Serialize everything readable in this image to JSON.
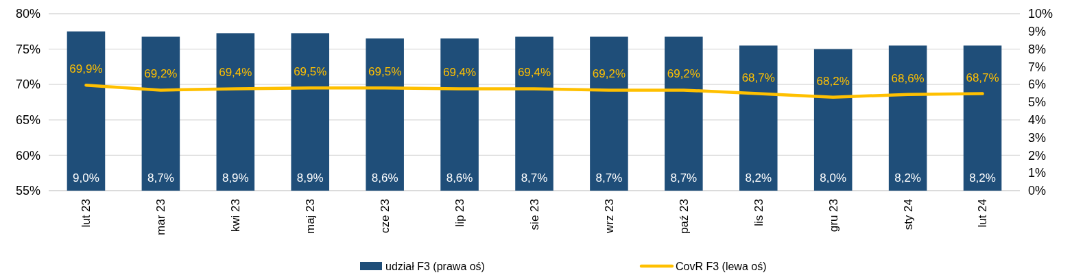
{
  "chart_data": {
    "type": "bar",
    "categories": [
      "lut 23",
      "mar 23",
      "kwi 23",
      "maj 23",
      "cze 23",
      "lip 23",
      "sie 23",
      "wrz 23",
      "paź 23",
      "lis 23",
      "gru 23",
      "sty 24",
      "lut 24"
    ],
    "series": [
      {
        "name": "udział F3 (prawa oś)",
        "axis": "y2",
        "color": "#1f4e79",
        "values": [
          9.0,
          8.7,
          8.9,
          8.9,
          8.6,
          8.6,
          8.7,
          8.7,
          8.7,
          8.2,
          8.0,
          8.2,
          8.2
        ],
        "value_labels": [
          "9,0%",
          "8,7%",
          "8,9%",
          "8,9%",
          "8,6%",
          "8,6%",
          "8,7%",
          "8,7%",
          "8,7%",
          "8,2%",
          "8,0%",
          "8,2%",
          "8,2%"
        ]
      },
      {
        "name": "CovR F3 (lewa oś)",
        "type": "line",
        "axis": "y",
        "color": "#ffc000",
        "values": [
          69.9,
          69.2,
          69.4,
          69.5,
          69.5,
          69.4,
          69.4,
          69.2,
          69.2,
          68.7,
          68.2,
          68.6,
          68.7
        ],
        "value_labels": [
          "69,9%",
          "69,2%",
          "69,4%",
          "69,5%",
          "69,5%",
          "69,4%",
          "69,4%",
          "69,2%",
          "69,2%",
          "68,7%",
          "68,2%",
          "68,6%",
          "68,7%"
        ]
      }
    ],
    "ylim": [
      55,
      80
    ],
    "yticks": [
      {
        "value": 55,
        "label": "55%"
      },
      {
        "value": 60,
        "label": "60%"
      },
      {
        "value": 65,
        "label": "65%"
      },
      {
        "value": 70,
        "label": "70%"
      },
      {
        "value": 75,
        "label": "75%"
      },
      {
        "value": 80,
        "label": "80%"
      }
    ],
    "y2lim": [
      0,
      10
    ],
    "y2ticks": [
      {
        "value": 0,
        "label": "0%"
      },
      {
        "value": 1,
        "label": "1%"
      },
      {
        "value": 2,
        "label": "2%"
      },
      {
        "value": 3,
        "label": "3%"
      },
      {
        "value": 4,
        "label": "4%"
      },
      {
        "value": 5,
        "label": "5%"
      },
      {
        "value": 6,
        "label": "6%"
      },
      {
        "value": 7,
        "label": "7%"
      },
      {
        "value": 8,
        "label": "8%"
      },
      {
        "value": 9,
        "label": "9%"
      },
      {
        "value": 10,
        "label": "10%"
      }
    ],
    "grid": "y",
    "legend": "bottom"
  }
}
